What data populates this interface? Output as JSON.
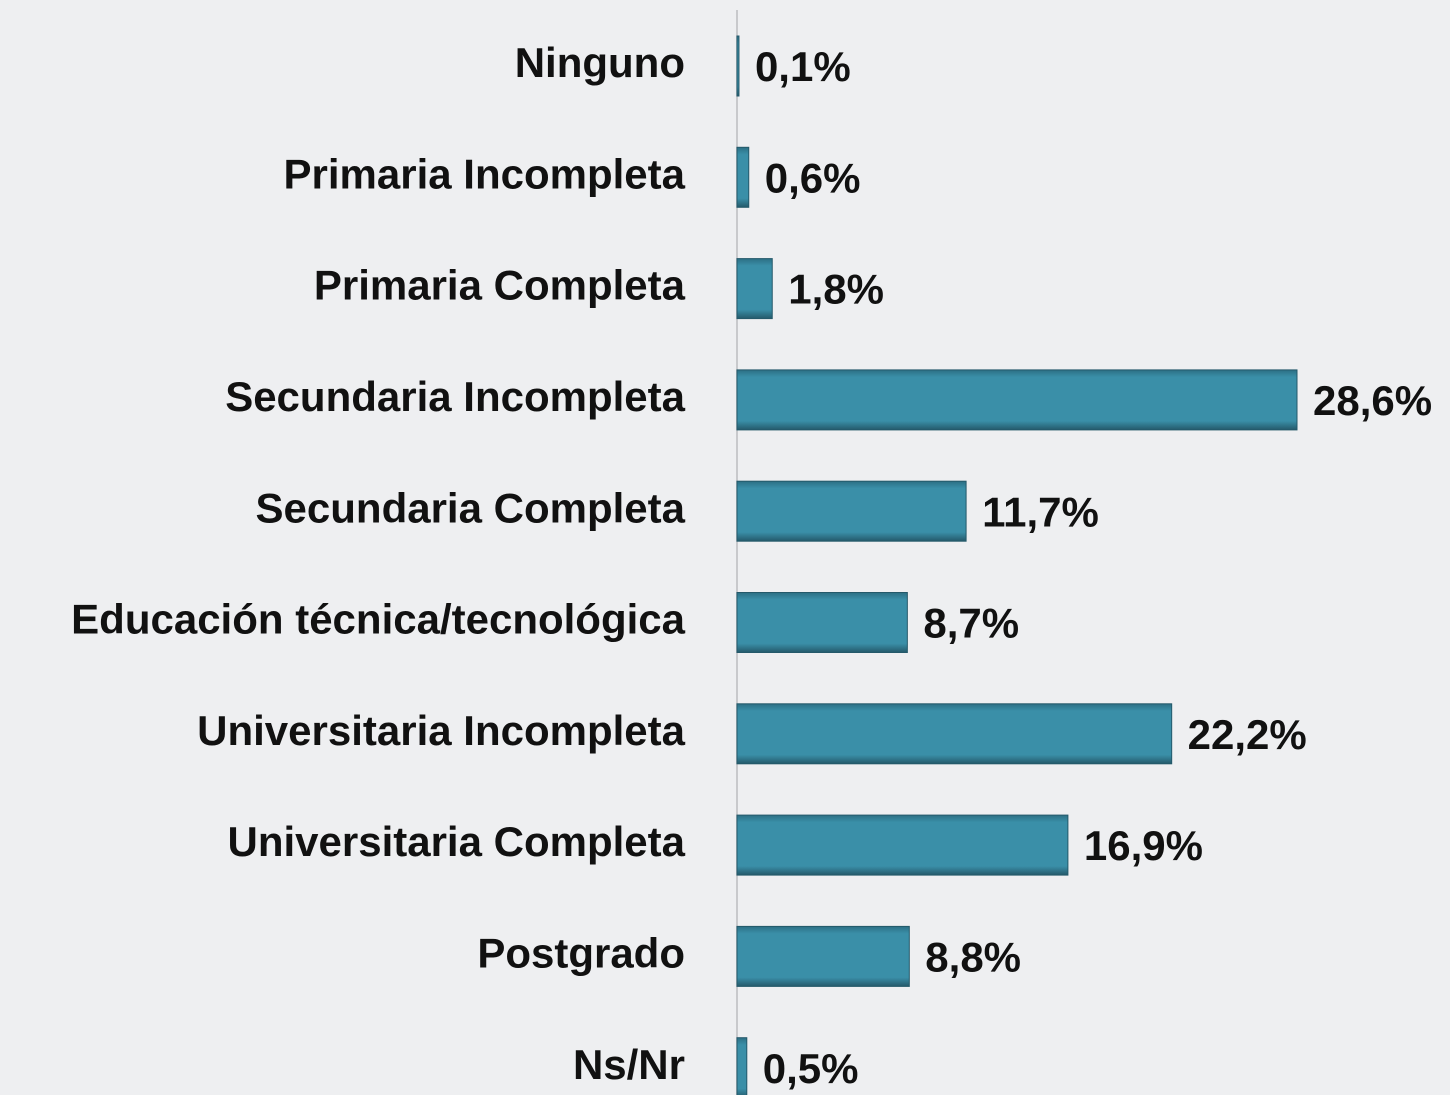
{
  "chart_data": {
    "type": "bar",
    "orientation": "horizontal",
    "categories": [
      "Ninguno",
      "Primaria Incompleta",
      "Primaria Completa",
      "Secundaria Incompleta",
      "Secundaria Completa",
      "Educación técnica/tecnológica",
      "Universitaria Incompleta",
      "Universitaria Completa",
      "Postgrado",
      "Ns/Nr"
    ],
    "values": [
      0.1,
      0.6,
      1.8,
      28.6,
      11.7,
      8.7,
      22.2,
      16.9,
      8.8,
      0.5
    ],
    "value_labels": [
      "0,1%",
      "0,6%",
      "1,8%",
      "28,6%",
      "11,7%",
      "8,7%",
      "22,2%",
      "16,9%",
      "8,8%",
      "0,5%"
    ],
    "color": "#3a8fa8"
  }
}
